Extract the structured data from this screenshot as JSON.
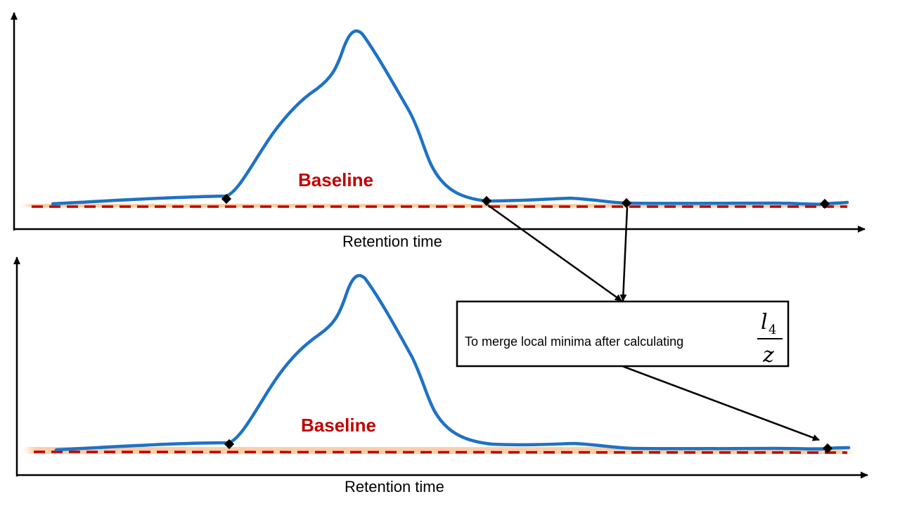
{
  "colors": {
    "signal": "#1F72C4",
    "baseline": "#C00000",
    "glow": "#F79646",
    "axis": "#000000"
  },
  "top_panel": {
    "xaxis_label": "Retention time",
    "baseline_label": "Baseline"
  },
  "bottom_panel": {
    "xaxis_label": "Retention time",
    "baseline_label": "Baseline"
  },
  "note": {
    "text": "To merge local minima after calculating",
    "fraction_numerator": "l",
    "fraction_subscript": "4",
    "fraction_denominator": "z"
  }
}
